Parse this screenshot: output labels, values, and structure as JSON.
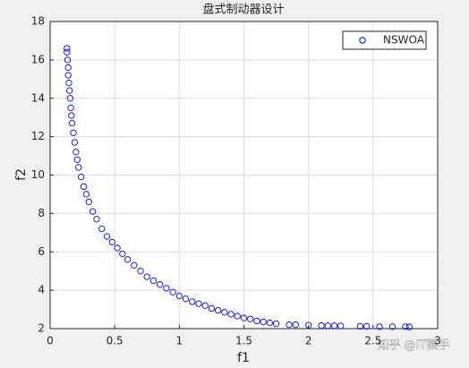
{
  "chart_data": {
    "type": "scatter",
    "title": "盘式制动器设计",
    "x_label": "f1",
    "y_label": "f2",
    "xlim": [
      0,
      3
    ],
    "ylim": [
      2,
      18
    ],
    "xticks": [
      0,
      0.5,
      1,
      1.5,
      2,
      2.5,
      3
    ],
    "yticks": [
      2,
      4,
      6,
      8,
      10,
      12,
      14,
      16,
      18
    ],
    "grid": true,
    "legend": "upper-right",
    "series": [
      {
        "name": "NSWOA",
        "color": "#0000ff",
        "x": [
          0.13,
          0.13,
          0.135,
          0.14,
          0.14,
          0.145,
          0.15,
          0.155,
          0.16,
          0.165,
          0.17,
          0.18,
          0.19,
          0.2,
          0.21,
          0.22,
          0.24,
          0.26,
          0.28,
          0.3,
          0.33,
          0.36,
          0.4,
          0.44,
          0.48,
          0.52,
          0.56,
          0.6,
          0.65,
          0.7,
          0.75,
          0.8,
          0.85,
          0.9,
          0.95,
          1.0,
          1.05,
          1.1,
          1.15,
          1.2,
          1.25,
          1.3,
          1.35,
          1.4,
          1.45,
          1.5,
          1.55,
          1.6,
          1.65,
          1.7,
          1.75,
          1.85,
          1.9,
          2.0,
          2.1,
          2.15,
          2.2,
          2.25,
          2.4,
          2.45,
          2.55,
          2.65,
          2.75,
          2.78
        ],
        "values": [
          16.6,
          16.4,
          16.0,
          15.6,
          15.2,
          14.8,
          14.4,
          14.0,
          13.5,
          13.1,
          12.7,
          12.2,
          11.7,
          11.2,
          10.8,
          10.4,
          9.9,
          9.4,
          9.0,
          8.6,
          8.1,
          7.7,
          7.2,
          6.8,
          6.5,
          6.2,
          5.9,
          5.6,
          5.3,
          5.0,
          4.7,
          4.5,
          4.3,
          4.1,
          3.9,
          3.7,
          3.55,
          3.4,
          3.3,
          3.2,
          3.05,
          2.95,
          2.85,
          2.75,
          2.65,
          2.55,
          2.5,
          2.4,
          2.35,
          2.3,
          2.25,
          2.2,
          2.2,
          2.18,
          2.16,
          2.15,
          2.15,
          2.14,
          2.12,
          2.12,
          2.1,
          2.1,
          2.1,
          2.09
        ]
      }
    ]
  },
  "watermark": "知乎 @IT猿手"
}
